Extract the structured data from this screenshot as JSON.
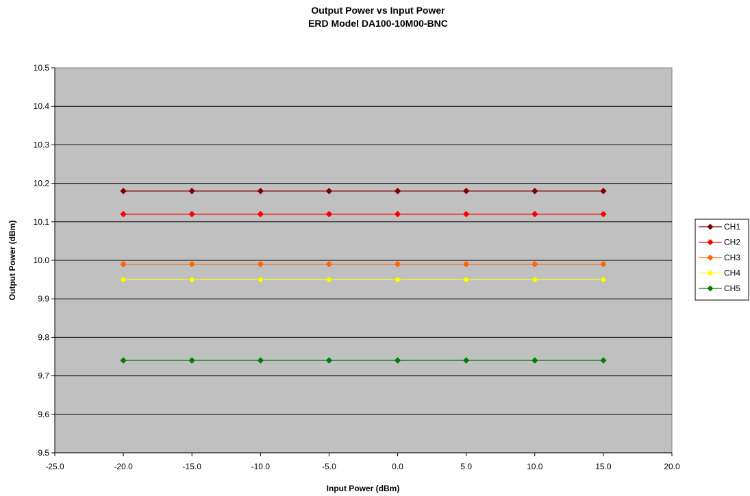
{
  "chart_data": {
    "type": "line",
    "title": "Output Power vs Input Power",
    "subtitle": "ERD Model DA100-10M00-BNC",
    "xlabel": "Input Power (dBm)",
    "ylabel": "Output Power (dBm)",
    "xlim": [
      -25,
      20
    ],
    "ylim": [
      9.5,
      10.5
    ],
    "x_ticks": [
      "-25.0",
      "-20.0",
      "-15.0",
      "-10.0",
      "-5.0",
      "0.0",
      "5.0",
      "10.0",
      "15.0",
      "20.0"
    ],
    "y_ticks": [
      "9.5",
      "9.6",
      "9.7",
      "9.8",
      "9.9",
      "10.0",
      "10.1",
      "10.2",
      "10.3",
      "10.4",
      "10.5"
    ],
    "grid": "horizontal",
    "legend_position": "right",
    "plot_background": "#c0c0c0",
    "x": [
      -20,
      -15,
      -10,
      -5,
      0,
      5,
      10,
      15
    ],
    "series": [
      {
        "name": "CH1",
        "color": "#800000",
        "values": [
          10.18,
          10.18,
          10.18,
          10.18,
          10.18,
          10.18,
          10.18,
          10.18
        ]
      },
      {
        "name": "CH2",
        "color": "#ff0000",
        "values": [
          10.12,
          10.12,
          10.12,
          10.12,
          10.12,
          10.12,
          10.12,
          10.12
        ]
      },
      {
        "name": "CH3",
        "color": "#ff6600",
        "values": [
          9.99,
          9.99,
          9.99,
          9.99,
          9.99,
          9.99,
          9.99,
          9.99
        ]
      },
      {
        "name": "CH4",
        "color": "#ffff00",
        "values": [
          9.95,
          9.95,
          9.95,
          9.95,
          9.95,
          9.95,
          9.95,
          9.95
        ]
      },
      {
        "name": "CH5",
        "color": "#008000",
        "values": [
          9.74,
          9.74,
          9.74,
          9.74,
          9.74,
          9.74,
          9.74,
          9.74
        ]
      }
    ]
  }
}
